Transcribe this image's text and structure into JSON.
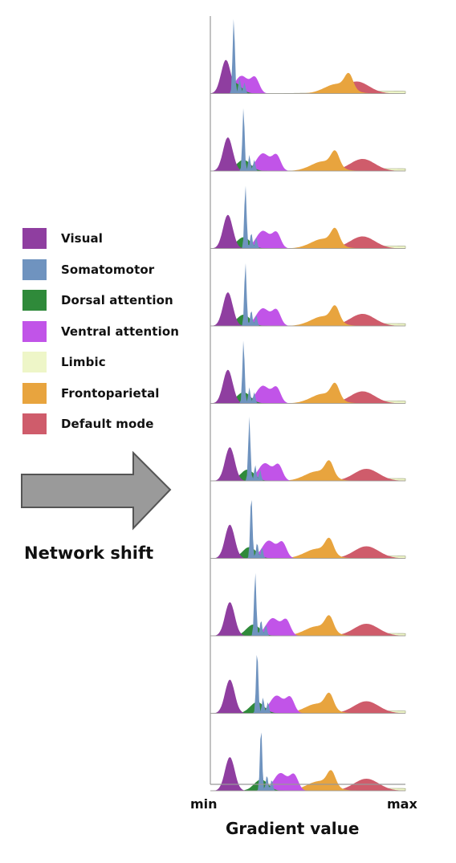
{
  "chart_data": {
    "type": "area",
    "subtype": "ridgeline-density",
    "n_rows": 10,
    "xlabel": "Gradient value",
    "xticks": [
      "min",
      "max"
    ],
    "ylabel": "",
    "grid": false,
    "legend": {
      "placement": "left",
      "entries": [
        {
          "name": "Visual",
          "color": "#8f3ea0"
        },
        {
          "name": "Somatomotor",
          "color": "#6f93bf"
        },
        {
          "name": "Dorsal attention",
          "color": "#2f8a3a"
        },
        {
          "name": "Ventral attention",
          "color": "#c154e8"
        },
        {
          "name": "Limbic",
          "color": "#eef6c8"
        },
        {
          "name": "Frontoparietal",
          "color": "#e8a43e"
        },
        {
          "name": "Default mode",
          "color": "#cf5c6b"
        }
      ]
    },
    "series_peaks": {
      "note": "approximate peak positions (0 = min, 1 = max) per row, top to bottom",
      "Visual": [
        0.08,
        0.09,
        0.09,
        0.09,
        0.09,
        0.1,
        0.1,
        0.1,
        0.1,
        0.1
      ],
      "Somatomotor": [
        0.12,
        0.17,
        0.18,
        0.18,
        0.17,
        0.2,
        0.21,
        0.23,
        0.24,
        0.26
      ],
      "Dorsal attention": [
        0.12,
        0.17,
        0.17,
        0.17,
        0.17,
        0.19,
        0.2,
        0.22,
        0.24,
        0.26
      ],
      "Ventral attention": [
        0.16,
        0.27,
        0.27,
        0.27,
        0.27,
        0.28,
        0.3,
        0.32,
        0.34,
        0.36
      ],
      "Limbic": [
        0.9,
        0.92,
        0.92,
        0.92,
        0.92,
        0.92,
        0.92,
        0.92,
        0.92,
        0.92
      ],
      "Frontoparietal": [
        0.65,
        0.58,
        0.58,
        0.58,
        0.58,
        0.55,
        0.55,
        0.55,
        0.55,
        0.56
      ],
      "Default mode": [
        0.75,
        0.78,
        0.78,
        0.78,
        0.78,
        0.8,
        0.8,
        0.8,
        0.8,
        0.8
      ]
    }
  },
  "annotation": {
    "arrow_label": "Network shift",
    "arrow_color": "#9a9a9a"
  }
}
